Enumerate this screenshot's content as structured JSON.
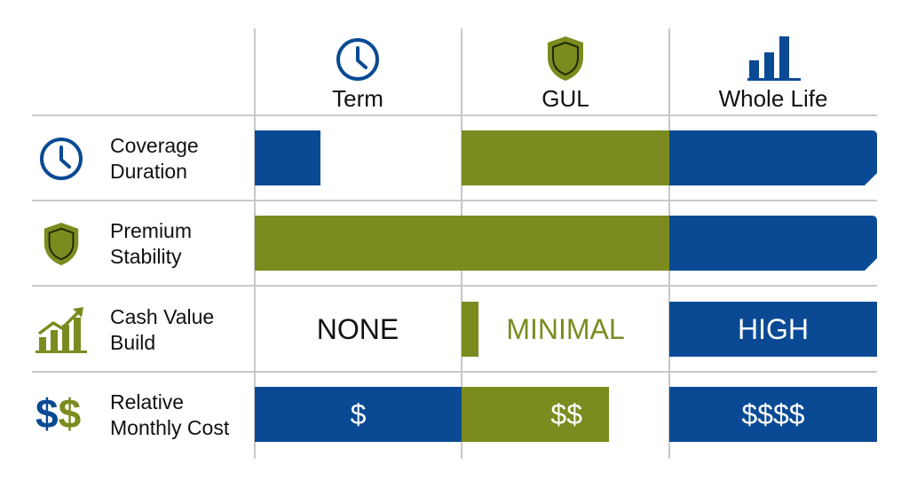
{
  "colors": {
    "blue": "#0a4a94",
    "olive": "#7b8b1f",
    "grid": "#c8c8c8",
    "text": "#111111"
  },
  "columns": [
    {
      "label": "Term",
      "icon": "clock-icon"
    },
    {
      "label": "GUL",
      "icon": "shield-icon"
    },
    {
      "label": "Whole Life",
      "icon": "bar-chart-icon"
    }
  ],
  "rows": [
    {
      "label_line1": "Coverage",
      "label_line2": "Duration",
      "icon": "clock-icon"
    },
    {
      "label_line1": "Premium",
      "label_line2": "Stability",
      "icon": "shield-icon"
    },
    {
      "label_line1": "Cash Value",
      "label_line2": "Build",
      "icon": "growth-chart-icon"
    },
    {
      "label_line1": "Relative",
      "label_line2": "Monthly Cost",
      "icon": "dollar-signs-icon"
    }
  ],
  "cash_value": {
    "term": "NONE",
    "gul": "MINIMAL",
    "whole_life": "HIGH"
  },
  "monthly_cost": {
    "term": "$",
    "gul": "$$",
    "whole_life": "$$$$"
  },
  "row_icon_text": {
    "dollar_a": "$",
    "dollar_b": "$"
  }
}
